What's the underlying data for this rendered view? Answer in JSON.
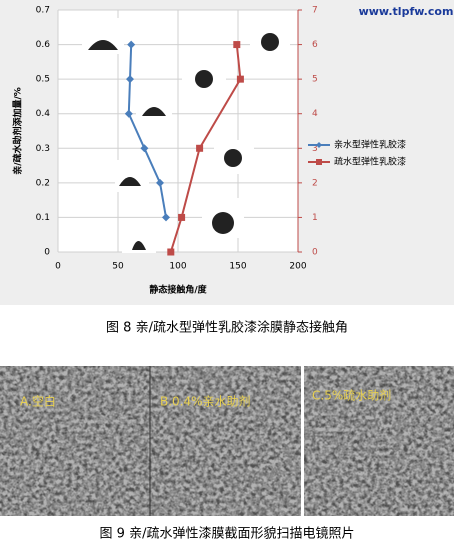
{
  "chart_data": {
    "type": "line",
    "x_label": "静态接触角/度",
    "y_label": "亲/疏水助剂添加量/%",
    "xlim": [
      0,
      200
    ],
    "xticks": [
      0,
      50,
      100,
      150,
      200
    ],
    "ylim": [
      0,
      0.7
    ],
    "yticks": [
      0,
      0.1,
      0.2,
      0.3,
      0.4,
      0.5,
      0.6,
      0.7
    ],
    "y2lim": [
      0,
      7
    ],
    "y2ticks": [
      0,
      1,
      2,
      3,
      4,
      5,
      6,
      7
    ],
    "grid": true,
    "series": [
      {
        "name": "亲水型弹性乳胶漆",
        "color": "#4a7ebb",
        "x": [
          61,
          60,
          59,
          72,
          85,
          90
        ],
        "values": [
          0.6,
          0.5,
          0.4,
          0.3,
          0.2,
          0.1
        ]
      },
      {
        "name": "疏水型弹性乳胶漆",
        "color": "#be4b48",
        "axis": "y2",
        "x": [
          94,
          103,
          118,
          152,
          149
        ],
        "values": [
          0,
          1,
          3,
          5,
          6
        ]
      }
    ]
  },
  "watermark": "www.tlpfw.com",
  "captions": [
    "图 8  亲/疏水型弹性乳胶漆涂膜静态接触角",
    "图 9  亲/疏水弹性漆膜截面形貌扫描电镜照片"
  ],
  "photos": {
    "labels": [
      "A.空白",
      "B.0.4%亲水助剂",
      "C.5%疏水助剂"
    ]
  }
}
